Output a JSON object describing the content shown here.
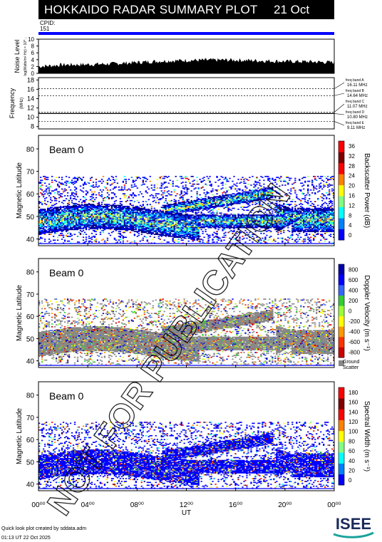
{
  "header": {
    "title": "HOKKAIDO RADAR SUMMARY PLOT",
    "date": "21 Oct 2025",
    "cpid_label": "CPID:",
    "cpid_value": "151"
  },
  "footer": {
    "line1": "Quick look plot created by sddata.adm",
    "line2": "01:13 UT 22 Oct 2025",
    "logo_text": "ISEE"
  },
  "watermark": "NOT FOR PUBLICATION",
  "colors": {
    "header_bg": "#000000",
    "cpid_bar": "#0000ff",
    "ground_scatter": "#888888",
    "watermark": "#000000"
  },
  "chart_data": [
    {
      "type": "area",
      "panel": "noise",
      "ylabel": "Noise Level",
      "yunit": "log(Watts/m² Hz) = 10^...",
      "ylim": [
        0,
        10
      ],
      "yticks": [
        "0",
        "2",
        "4",
        "6",
        "8",
        "10"
      ],
      "x": [
        0,
        2,
        4,
        6,
        8,
        10,
        12,
        14,
        16,
        18,
        20,
        22,
        24
      ],
      "values": [
        2.0,
        2.5,
        2.6,
        2.8,
        3.2,
        3.6,
        3.8,
        3.9,
        3.9,
        3.7,
        3.5,
        3.4,
        3.2
      ]
    },
    {
      "type": "line",
      "panel": "frequency",
      "ylabel": "Frequency",
      "yunit": "(MHz)",
      "ylim": [
        7.5,
        18.5
      ],
      "yticks": [
        "8",
        "10",
        "12",
        "14",
        "16",
        "18"
      ],
      "freq_bands": [
        {
          "label": "freq band A",
          "value_text": "16.11 MHz",
          "mhz": 16.11
        },
        {
          "label": "freq band B",
          "value_text": "14.64 MHz",
          "mhz": 14.64
        },
        {
          "label": "freq band C",
          "value_text": "11.07 MHz",
          "mhz": 11.07
        },
        {
          "label": "freq band D",
          "value_text": "10.80 MHz",
          "mhz": 10.8
        },
        {
          "label": "freq band E",
          "value_text": "9.11 MHz",
          "mhz": 9.11
        }
      ],
      "series": [
        {
          "values": [
            10.8,
            10.8,
            10.8,
            10.8,
            10.8,
            10.8,
            10.8,
            10.8,
            10.8,
            10.8,
            10.8,
            10.8,
            10.8
          ]
        }
      ]
    },
    {
      "type": "heatmap",
      "panel": "power",
      "beam_label": "Beam  0",
      "ylabel": "Magnetic Latitude",
      "ylim": [
        37,
        86
      ],
      "yticks": [
        "40",
        "50",
        "60",
        "70",
        "80"
      ],
      "colorbar_label": "Backscatter Power (dB)",
      "colorbar_ticks": [
        "0",
        "4",
        "8",
        "12",
        "16",
        "20",
        "24",
        "28",
        "32",
        "36"
      ],
      "colorbar_range": [
        0,
        36
      ]
    },
    {
      "type": "heatmap",
      "panel": "velocity",
      "beam_label": "Beam  0",
      "ylabel": "Magnetic Latitude",
      "ylim": [
        37,
        86
      ],
      "yticks": [
        "40",
        "50",
        "60",
        "70",
        "80"
      ],
      "colorbar_label": "Doppler Velocity (m s⁻¹)",
      "colorbar_ticks": [
        "800",
        "600",
        "400",
        "200",
        "0",
        "-200",
        "-400",
        "-600",
        "-800"
      ],
      "colorbar_range": [
        -900,
        900
      ],
      "gs_label1": "Ground",
      "gs_label2": "Scatter"
    },
    {
      "type": "heatmap",
      "panel": "width",
      "beam_label": "Beam  0",
      "ylabel": "Magnetic Latitude",
      "ylim": [
        37,
        86
      ],
      "yticks": [
        "40",
        "50",
        "60",
        "70",
        "80"
      ],
      "colorbar_label": "Spectral Width (m s⁻¹)",
      "colorbar_ticks": [
        "0",
        "20",
        "40",
        "60",
        "80",
        "100",
        "120",
        "140",
        "160",
        "180"
      ],
      "colorbar_range": [
        0,
        190
      ]
    }
  ],
  "xaxis": {
    "label": "UT",
    "range": [
      0,
      24
    ],
    "ticks": [
      {
        "value": 0,
        "text": "00⁰⁰"
      },
      {
        "value": 4,
        "text": "04⁰⁰"
      },
      {
        "value": 8,
        "text": "08⁰⁰"
      },
      {
        "value": 12,
        "text": "12⁰⁰"
      },
      {
        "value": 16,
        "text": "16⁰⁰"
      },
      {
        "value": 20,
        "text": "20⁰⁰"
      },
      {
        "value": 24,
        "text": "00⁰⁰"
      }
    ]
  }
}
